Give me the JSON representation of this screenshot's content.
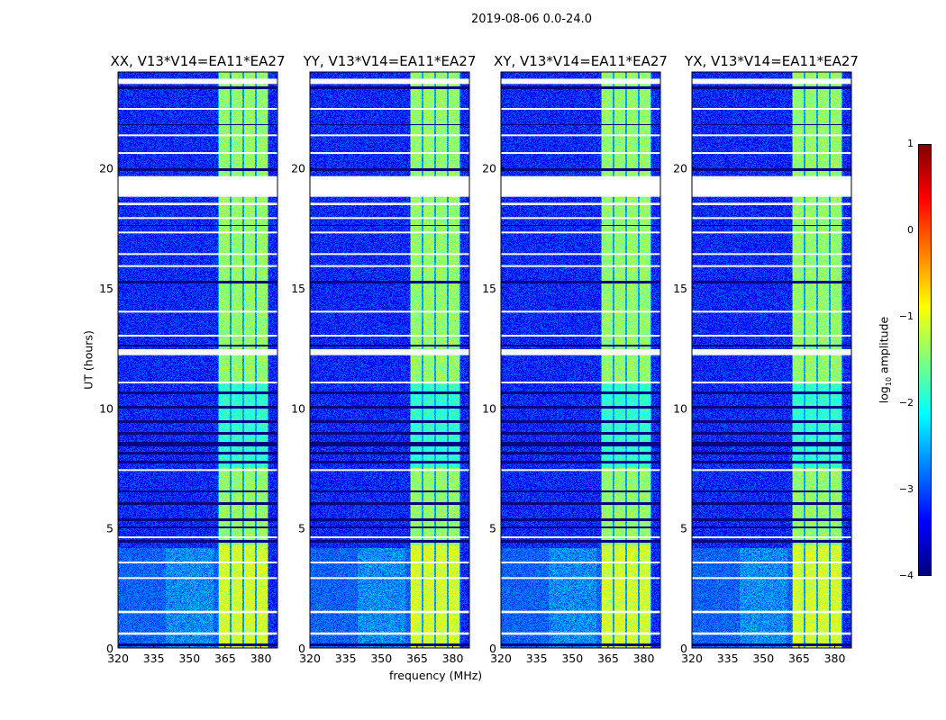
{
  "suptitle": "2019-08-06 0.0-24.0",
  "xlabel": "frequency (MHz)",
  "ylabel": "UT (hours)",
  "colorbar": {
    "label_prefix": "log",
    "label_sub": "10",
    "label_suffix": " amplitude",
    "ticks": [
      "1",
      "0",
      "−1",
      "−2",
      "−3",
      "−4"
    ],
    "range": [
      -4,
      1
    ],
    "colormap": "jet"
  },
  "chart_data": {
    "type": "heatmap",
    "title": "2019-08-06 0.0-24.0",
    "xlabel": "frequency (MHz)",
    "ylabel": "UT (hours)",
    "xlim": [
      320,
      387
    ],
    "ylim": [
      0,
      24
    ],
    "xticks": [
      "320",
      "335",
      "350",
      "365",
      "380"
    ],
    "yticks": [
      "0",
      "5",
      "10",
      "15",
      "20"
    ],
    "xtick_values": [
      320,
      335,
      350,
      365,
      380
    ],
    "ytick_values": [
      0,
      5,
      10,
      15,
      20
    ],
    "value_range": [
      -4,
      1
    ],
    "background_level": -3.2,
    "bright_subbands_mhz": [
      [
        362.3,
        366.8
      ],
      [
        367.5,
        372.0
      ],
      [
        372.8,
        377.3
      ],
      [
        378.0,
        382.6
      ]
    ],
    "bright_level": -1.4,
    "flagged_hours": [
      [
        23.5,
        23.72
      ],
      [
        22.45,
        22.5
      ],
      [
        21.35,
        21.4
      ],
      [
        20.6,
        20.66
      ],
      [
        18.8,
        19.66
      ],
      [
        18.45,
        18.55
      ],
      [
        17.9,
        17.95
      ],
      [
        17.3,
        17.35
      ],
      [
        16.4,
        16.45
      ],
      [
        15.9,
        15.95
      ],
      [
        14.0,
        14.05
      ],
      [
        13.0,
        13.05
      ],
      [
        12.2,
        12.45
      ],
      [
        11.05,
        11.1
      ],
      [
        7.4,
        7.45
      ],
      [
        4.6,
        4.65
      ],
      [
        3.55,
        3.6
      ],
      [
        2.9,
        2.95
      ],
      [
        1.45,
        1.55
      ],
      [
        0.55,
        0.65
      ]
    ],
    "dark_hours": [
      [
        23.3,
        23.4
      ],
      [
        21.8,
        21.85
      ],
      [
        19.9,
        20.0
      ],
      [
        17.6,
        17.65
      ],
      [
        15.2,
        15.3
      ],
      [
        12.6,
        12.65
      ],
      [
        10.6,
        10.7
      ],
      [
        10.0,
        10.1
      ],
      [
        9.4,
        9.5
      ],
      [
        8.9,
        9.0
      ],
      [
        8.4,
        8.6
      ],
      [
        8.1,
        8.2
      ],
      [
        7.7,
        7.8
      ],
      [
        6.5,
        6.6
      ],
      [
        6.0,
        6.1
      ],
      [
        5.3,
        5.4
      ],
      [
        5.0,
        5.1
      ],
      [
        4.4,
        4.5
      ],
      [
        0.1,
        0.2
      ]
    ],
    "panels": [
      {
        "title": "XX, V13*V14=EA11*EA27"
      },
      {
        "title": "YY, V13*V14=EA11*EA27"
      },
      {
        "title": "XY, V13*V14=EA11*EA27"
      },
      {
        "title": "YX, V13*V14=EA11*EA27"
      }
    ]
  }
}
